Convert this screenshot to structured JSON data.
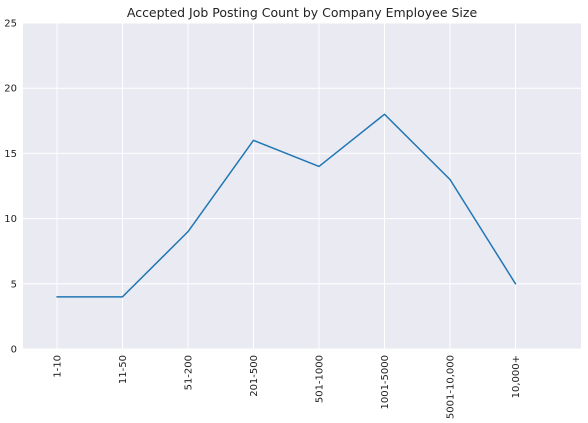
{
  "chart_data": {
    "type": "line",
    "title": "Accepted Job Posting Count by Company Employee Size",
    "xlabel": "",
    "ylabel": "",
    "categories": [
      "1-10",
      "11-50",
      "51-200",
      "201-500",
      "501-1000",
      "1001-5000",
      "5001-10,000",
      "10,000+"
    ],
    "series": [
      {
        "values": [
          4,
          4,
          9,
          16,
          14,
          18,
          13,
          5
        ]
      }
    ],
    "ylim": [
      0,
      25
    ],
    "yticks": [
      0,
      5,
      10,
      15,
      20,
      25
    ],
    "grid": true,
    "legend": "none",
    "colors": {
      "line": "#1f77b4",
      "background": "#eaeaf2",
      "grid": "#ffffff",
      "text": "#222222"
    }
  }
}
